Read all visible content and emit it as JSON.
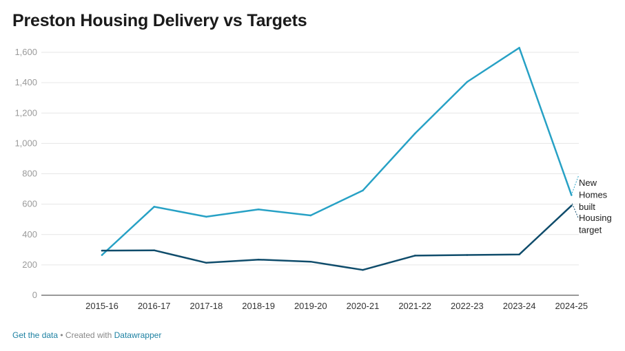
{
  "chart_data": {
    "type": "line",
    "title": "Preston Housing Delivery vs Targets",
    "categories": [
      "2015-16",
      "2016-17",
      "2017-18",
      "2018-19",
      "2019-20",
      "2020-21",
      "2021-22",
      "2022-23",
      "2023-24",
      "2024-25"
    ],
    "ylim": [
      0,
      1600
    ],
    "yticks": [
      0,
      200,
      400,
      600,
      800,
      1000,
      1200,
      1400,
      1600
    ],
    "ytick_labels": [
      "0",
      "200",
      "400",
      "600",
      "800",
      "1,000",
      "1,200",
      "1,400",
      "1,600"
    ],
    "xlabel": "",
    "ylabel": "",
    "grid": true,
    "series": [
      {
        "name": "New Homes built",
        "label_lines": [
          "New",
          "Homes",
          "built"
        ],
        "color": "#27a1c5",
        "values": [
          265,
          583,
          517,
          565,
          526,
          690,
          1065,
          1405,
          1630,
          660
        ]
      },
      {
        "name": "Housing target",
        "label_lines": [
          "Housing",
          "target"
        ],
        "color": "#0f4c6b",
        "values": [
          294,
          296,
          214,
          235,
          221,
          167,
          261,
          265,
          269,
          590
        ]
      }
    ]
  },
  "footer": {
    "get_data": "Get the data",
    "separator": " • Created with ",
    "tool": "Datawrapper"
  }
}
